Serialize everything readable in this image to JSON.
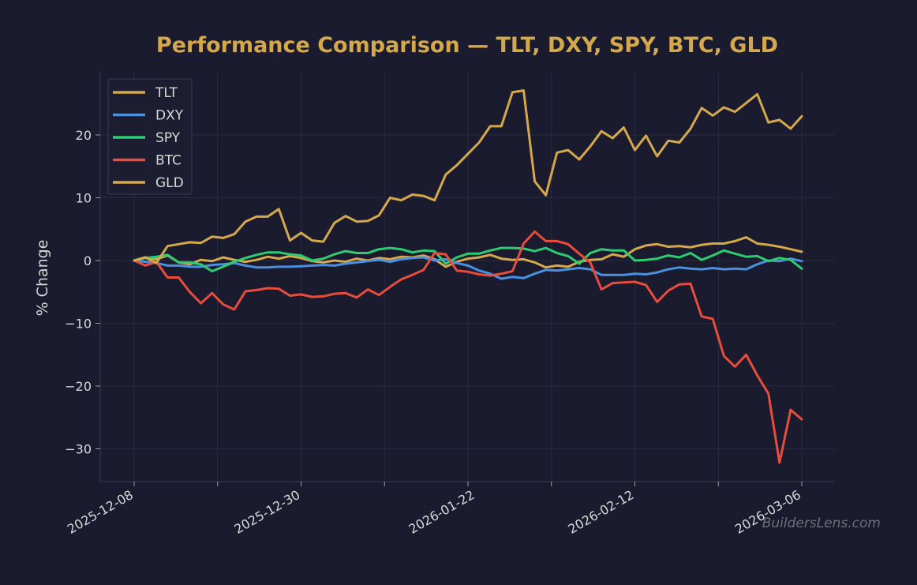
{
  "chart_data": {
    "type": "line",
    "title": "Performance Comparison — TLT, DXY, SPY, BTC, GLD",
    "xlabel": "",
    "ylabel": "% Change",
    "ylim": [
      -35,
      30
    ],
    "yticks": [
      20,
      10,
      0,
      -10,
      -20,
      -30
    ],
    "ytick_labels": [
      "20",
      "10",
      "0",
      "−10",
      "−20",
      "−30"
    ],
    "x_tick_dates": [
      "2025-12-08",
      "2025-12-30",
      "2026-01-22",
      "2026-02-12",
      "2026-03-06"
    ],
    "grid": true,
    "legend_position": "top-left",
    "x_start": "2025-12-08",
    "x_end": "2026-03-06",
    "series": [
      {
        "name": "TLT",
        "color": "#d4a84b",
        "values": [
          0,
          0.5,
          0.2,
          0.8,
          -0.3,
          -0.6,
          0.1,
          -0.1,
          0.5,
          0.1,
          -0.2,
          0.1,
          0.6,
          0.3,
          0.7,
          0.4,
          -0.1,
          -0.3,
          0.0,
          -0.2,
          0.3,
          0.0,
          0.4,
          0.2,
          0.6,
          0.5,
          0.8,
          0.2,
          -1.0,
          -0.2,
          0.3,
          0.5,
          0.9,
          0.3,
          0.1,
          0.2,
          -0.3,
          -1.1,
          -0.8,
          -1.0,
          -0.2,
          0.1,
          0.2,
          1.0,
          0.6,
          1.8,
          2.4,
          2.6,
          2.2,
          2.3,
          2.1,
          2.5,
          2.7,
          2.7,
          3.1,
          3.7,
          2.7,
          2.5,
          2.2,
          1.8,
          1.4
        ]
      },
      {
        "name": "DXY",
        "color": "#4a8fe0",
        "values": [
          0,
          -0.2,
          -0.4,
          -0.8,
          -0.8,
          -1.0,
          -1.0,
          -0.7,
          -0.6,
          -0.4,
          -0.8,
          -1.1,
          -1.1,
          -1.0,
          -1.0,
          -0.9,
          -0.8,
          -0.7,
          -0.8,
          -0.5,
          -0.3,
          -0.1,
          0.1,
          -0.2,
          0.2,
          0.4,
          0.5,
          0.0,
          0.2,
          -0.4,
          -0.8,
          -1.6,
          -2.1,
          -2.9,
          -2.6,
          -2.8,
          -2.1,
          -1.5,
          -1.6,
          -1.4,
          -1.2,
          -1.4,
          -2.3,
          -2.3,
          -2.3,
          -2.1,
          -2.2,
          -1.9,
          -1.4,
          -1.1,
          -1.3,
          -1.4,
          -1.2,
          -1.4,
          -1.3,
          -1.4,
          -0.6,
          0.0,
          -0.1,
          0.3,
          -0.1
        ]
      },
      {
        "name": "SPY",
        "color": "#2ecc71",
        "values": [
          0,
          0.4,
          0.6,
          0.9,
          -0.3,
          -0.3,
          -0.6,
          -1.7,
          -1.0,
          -0.2,
          0.4,
          0.9,
          1.3,
          1.3,
          1.0,
          0.8,
          0.0,
          0.3,
          1.0,
          1.5,
          1.2,
          1.2,
          1.8,
          2.0,
          1.8,
          1.3,
          1.6,
          1.5,
          -0.5,
          0.5,
          1.1,
          1.1,
          1.6,
          2.0,
          2.0,
          1.9,
          1.5,
          2.0,
          1.2,
          0.7,
          -0.5,
          1.2,
          1.8,
          1.6,
          1.6,
          0.0,
          0.1,
          0.3,
          0.8,
          0.5,
          1.2,
          0.1,
          0.8,
          1.6,
          1.1,
          0.6,
          0.7,
          -0.1,
          0.4,
          0.1,
          -1.3
        ]
      },
      {
        "name": "BTC",
        "color": "#e74c3c",
        "values": [
          0,
          -0.8,
          -0.2,
          -2.7,
          -2.7,
          -5.0,
          -6.8,
          -5.2,
          -7.0,
          -7.8,
          -4.9,
          -4.7,
          -4.4,
          -4.5,
          -5.6,
          -5.4,
          -5.8,
          -5.7,
          -5.3,
          -5.2,
          -5.9,
          -4.6,
          -5.5,
          -4.2,
          -3.0,
          -2.3,
          -1.5,
          1.2,
          1.0,
          -1.6,
          -1.8,
          -2.2,
          -2.4,
          -2.1,
          -1.7,
          2.7,
          4.6,
          3.1,
          3.1,
          2.6,
          1.1,
          -0.3,
          -4.6,
          -3.6,
          -3.5,
          -3.4,
          -3.9,
          -6.6,
          -4.8,
          -3.8,
          -3.7,
          -8.9,
          -9.3,
          -15.2,
          -16.9,
          -15.0,
          -18.3,
          -21.2,
          -32.2,
          -23.8,
          -25.3
        ]
      },
      {
        "name": "GLD",
        "color": "#d4a84b",
        "values": [
          0,
          0.5,
          -0.4,
          2.3,
          2.6,
          2.9,
          2.8,
          3.8,
          3.6,
          4.2,
          6.2,
          7.0,
          7.0,
          8.2,
          3.2,
          4.4,
          3.2,
          3.0,
          6.0,
          7.1,
          6.2,
          6.3,
          7.2,
          10.0,
          9.6,
          10.5,
          10.3,
          9.6,
          13.7,
          15.2,
          17.0,
          18.8,
          21.4,
          21.4,
          26.8,
          27.1,
          12.6,
          10.4,
          17.2,
          17.6,
          16.1,
          18.2,
          20.6,
          19.5,
          21.2,
          17.6,
          19.9,
          16.6,
          19.1,
          18.8,
          21.0,
          24.3,
          23.1,
          24.4,
          23.7,
          25.1,
          26.5,
          22.0,
          22.4,
          21.0,
          23.0
        ]
      }
    ]
  },
  "watermark": "BuildersLens.com"
}
